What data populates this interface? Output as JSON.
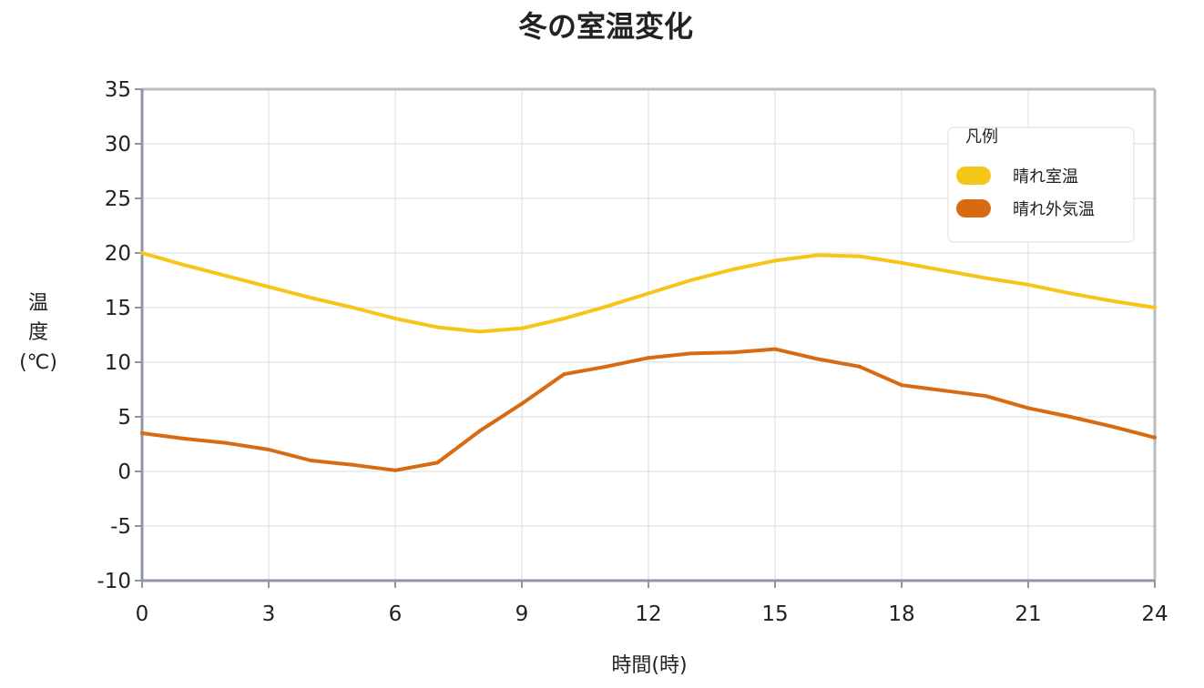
{
  "chart_data": {
    "type": "line",
    "title": "冬の室温変化",
    "xlabel": "時間(時)",
    "ylabel_lines": [
      "温",
      "度",
      "(℃)"
    ],
    "x_ticks": [
      0,
      3,
      6,
      9,
      12,
      15,
      18,
      21,
      24
    ],
    "y_ticks": [
      -10,
      -5,
      0,
      5,
      10,
      15,
      20,
      25,
      30,
      35
    ],
    "xlim": [
      0,
      24
    ],
    "ylim": [
      -10,
      35
    ],
    "grid": true,
    "legend": {
      "title": "凡例",
      "placement": "top-right"
    },
    "series": [
      {
        "name": "晴れ室温",
        "color": "#F5C518",
        "x": [
          0,
          1,
          2,
          3,
          4,
          5,
          6,
          7,
          8,
          9,
          10,
          11,
          12,
          13,
          14,
          15,
          16,
          17,
          18,
          19,
          20,
          21,
          22,
          23,
          24
        ],
        "values": [
          20,
          18.9,
          17.9,
          16.9,
          15.9,
          15.0,
          14.0,
          13.2,
          12.8,
          13.1,
          14.0,
          15.1,
          16.3,
          17.5,
          18.5,
          19.3,
          19.8,
          19.7,
          19.1,
          18.4,
          17.7,
          17.1,
          16.3,
          15.6,
          15.0
        ]
      },
      {
        "name": "晴れ外気温",
        "color": "#D86A12",
        "x": [
          0,
          1,
          2,
          3,
          4,
          5,
          6,
          7,
          8,
          9,
          10,
          11,
          12,
          13,
          14,
          15,
          16,
          17,
          18,
          19,
          20,
          21,
          22,
          23,
          24
        ],
        "values": [
          3.5,
          3.0,
          2.6,
          2.0,
          1.0,
          0.6,
          0.1,
          0.8,
          3.7,
          6.2,
          8.9,
          9.6,
          10.4,
          10.8,
          10.9,
          11.2,
          10.3,
          9.6,
          7.9,
          7.4,
          6.9,
          5.8,
          5.0,
          4.1,
          3.1
        ]
      }
    ]
  }
}
